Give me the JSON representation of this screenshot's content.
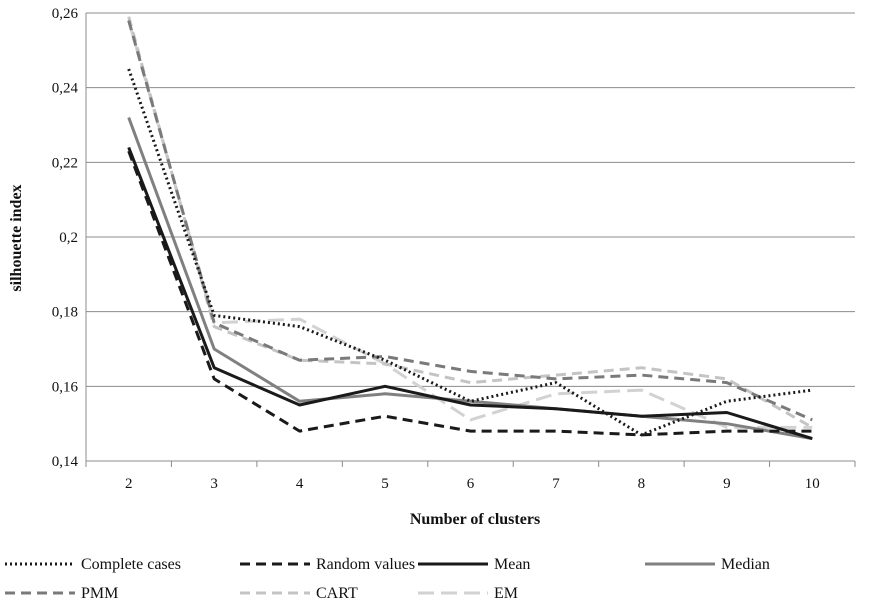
{
  "chart_data": {
    "type": "line",
    "xlabel": "Number of clusters",
    "ylabel": "silhouette index",
    "x": [
      2,
      3,
      4,
      5,
      6,
      7,
      8,
      9,
      10
    ],
    "x_tick_labels": [
      "2",
      "3",
      "4",
      "5",
      "6",
      "7",
      "8",
      "9",
      "10"
    ],
    "ylim": [
      0.14,
      0.26
    ],
    "y_ticks": [
      0.14,
      0.16,
      0.18,
      0.2,
      0.22,
      0.24,
      0.26
    ],
    "y_tick_labels": [
      "0,14",
      "0,16",
      "0,18",
      "0,2",
      "0,22",
      "0,24",
      "0,26"
    ],
    "grid": "horizontal",
    "legend_position": "bottom",
    "series": [
      {
        "name": "Complete cases",
        "values": [
          0.245,
          0.179,
          0.176,
          0.167,
          0.156,
          0.161,
          0.147,
          0.156,
          0.159
        ],
        "color": "#1a1a1a",
        "style": "dotted"
      },
      {
        "name": "Random values",
        "values": [
          0.223,
          0.162,
          0.148,
          0.152,
          0.148,
          0.148,
          0.147,
          0.148,
          0.148
        ],
        "color": "#1a1a1a",
        "style": "dashed"
      },
      {
        "name": "Mean",
        "values": [
          0.224,
          0.165,
          0.155,
          0.16,
          0.155,
          0.154,
          0.152,
          0.153,
          0.146
        ],
        "color": "#1a1a1a",
        "style": "solid"
      },
      {
        "name": "Median",
        "values": [
          0.232,
          0.17,
          0.156,
          0.158,
          0.156,
          0.154,
          0.152,
          0.15,
          0.146
        ],
        "color": "#808080",
        "style": "solid"
      },
      {
        "name": "PMM",
        "values": [
          0.258,
          0.177,
          0.167,
          0.168,
          0.164,
          0.162,
          0.163,
          0.161,
          0.151
        ],
        "color": "#7a7a7a",
        "style": "dashed"
      },
      {
        "name": "CART",
        "values": [
          0.259,
          0.176,
          0.167,
          0.166,
          0.161,
          0.163,
          0.165,
          0.162,
          0.149
        ],
        "color": "#c4c4c4",
        "style": "dashed"
      },
      {
        "name": "EM",
        "values": [
          0.258,
          0.177,
          0.178,
          0.166,
          0.151,
          0.158,
          0.159,
          0.149,
          0.149
        ],
        "color": "#d2d2d2",
        "style": "longdash"
      }
    ]
  }
}
